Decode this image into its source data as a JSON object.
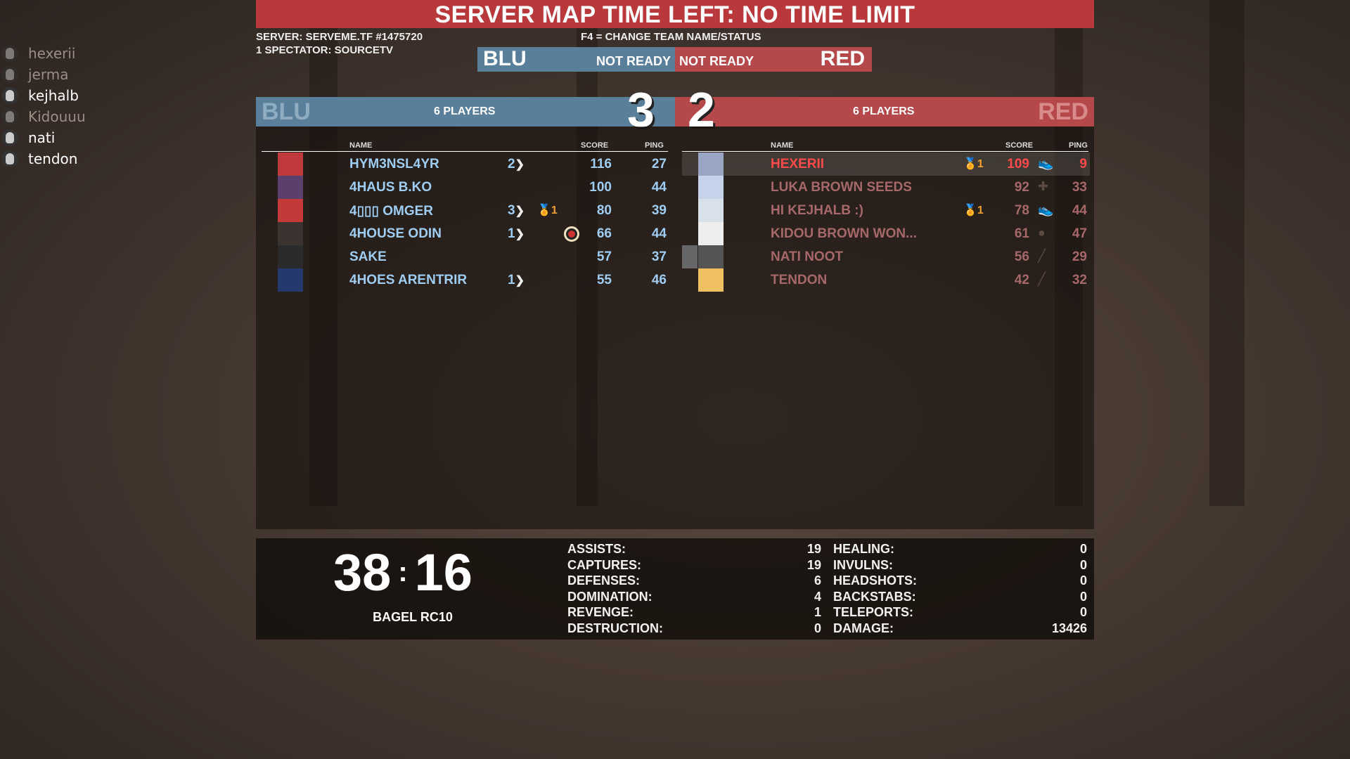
{
  "banner": "SERVER MAP TIME LEFT: NO TIME LIMIT",
  "server_line": "SERVER: SERVEME.TF #1475720",
  "spectator_line": "1 SPECTATOR: SOURCETV",
  "f4_hint": "F4 = CHANGE TEAM NAME/STATUS",
  "ready": {
    "blu_label": "BLU",
    "blu_status": "NOT READY",
    "red_status": "NOT READY",
    "red_label": "RED"
  },
  "blu": {
    "name": "BLU",
    "players": "6 PLAYERS",
    "score": "3",
    "color": "#5a7f9a"
  },
  "red": {
    "name": "RED",
    "players": "6 PLAYERS",
    "score": "2",
    "color": "#b5484a"
  },
  "columns": {
    "name": "NAME",
    "score": "SCORE",
    "ping": "PING"
  },
  "blu_players": [
    {
      "name": "HYM3NSL4YR",
      "dom": "2",
      "medal": "",
      "score": "116",
      "ping": "27",
      "icon": ""
    },
    {
      "name": "4HAUS B.KO",
      "dom": "",
      "medal": "",
      "score": "100",
      "ping": "44",
      "icon": ""
    },
    {
      "name": "4▯▯▯ OMGER",
      "dom": "3",
      "medal": "1",
      "score": "80",
      "ping": "39",
      "icon": ""
    },
    {
      "name": "4HOUSE ODIN",
      "dom": "1",
      "medal": "",
      "score": "66",
      "ping": "44",
      "icon": "target-icon"
    },
    {
      "name": "SAKE",
      "dom": "",
      "medal": "",
      "score": "57",
      "ping": "37",
      "icon": ""
    },
    {
      "name": "4HOES ARENTRIR",
      "dom": "1",
      "medal": "",
      "score": "55",
      "ping": "46",
      "icon": ""
    }
  ],
  "red_players": [
    {
      "name": "HEXERII",
      "medal": "1",
      "score": "109",
      "ping": "9",
      "class_icon": "scout-icon"
    },
    {
      "name": "LUKA BROWN SEEDS",
      "medal": "",
      "score": "92",
      "ping": "33",
      "class_icon": "medic-icon"
    },
    {
      "name": "HI KEJHALB :)",
      "medal": "1",
      "score": "78",
      "ping": "44",
      "class_icon": "scout-icon"
    },
    {
      "name": "KIDOU BROWN WON...",
      "medal": "",
      "score": "61",
      "ping": "47",
      "class_icon": "demoman-icon"
    },
    {
      "name": "NATI NOOT",
      "medal": "",
      "score": "56",
      "ping": "29",
      "class_icon": "sniper-icon"
    },
    {
      "name": "TENDON",
      "medal": "",
      "score": "42",
      "ping": "32",
      "class_icon": "sniper-icon"
    }
  ],
  "spectators": [
    {
      "name": "hexerii",
      "active": false
    },
    {
      "name": "jerma",
      "active": false
    },
    {
      "name": "kejhalb",
      "active": true
    },
    {
      "name": "Kidouuu",
      "active": false
    },
    {
      "name": "nati",
      "active": true
    },
    {
      "name": "tendon",
      "active": true
    }
  ],
  "timer": {
    "minutes": "38",
    "sep": ":",
    "seconds": "16"
  },
  "map": "BAGEL RC10",
  "stats_left": [
    [
      "ASSISTS:",
      "19"
    ],
    [
      "CAPTURES:",
      "19"
    ],
    [
      "DEFENSES:",
      "6"
    ],
    [
      "DOMINATION:",
      "4"
    ],
    [
      "REVENGE:",
      "1"
    ],
    [
      "DESTRUCTION:",
      "0"
    ]
  ],
  "stats_right": [
    [
      "HEALING:",
      "0"
    ],
    [
      "INVULNS:",
      "0"
    ],
    [
      "HEADSHOTS:",
      "0"
    ],
    [
      "BACKSTABS:",
      "0"
    ],
    [
      "TELEPORTS:",
      "0"
    ],
    [
      "DAMAGE:",
      "13426"
    ]
  ]
}
